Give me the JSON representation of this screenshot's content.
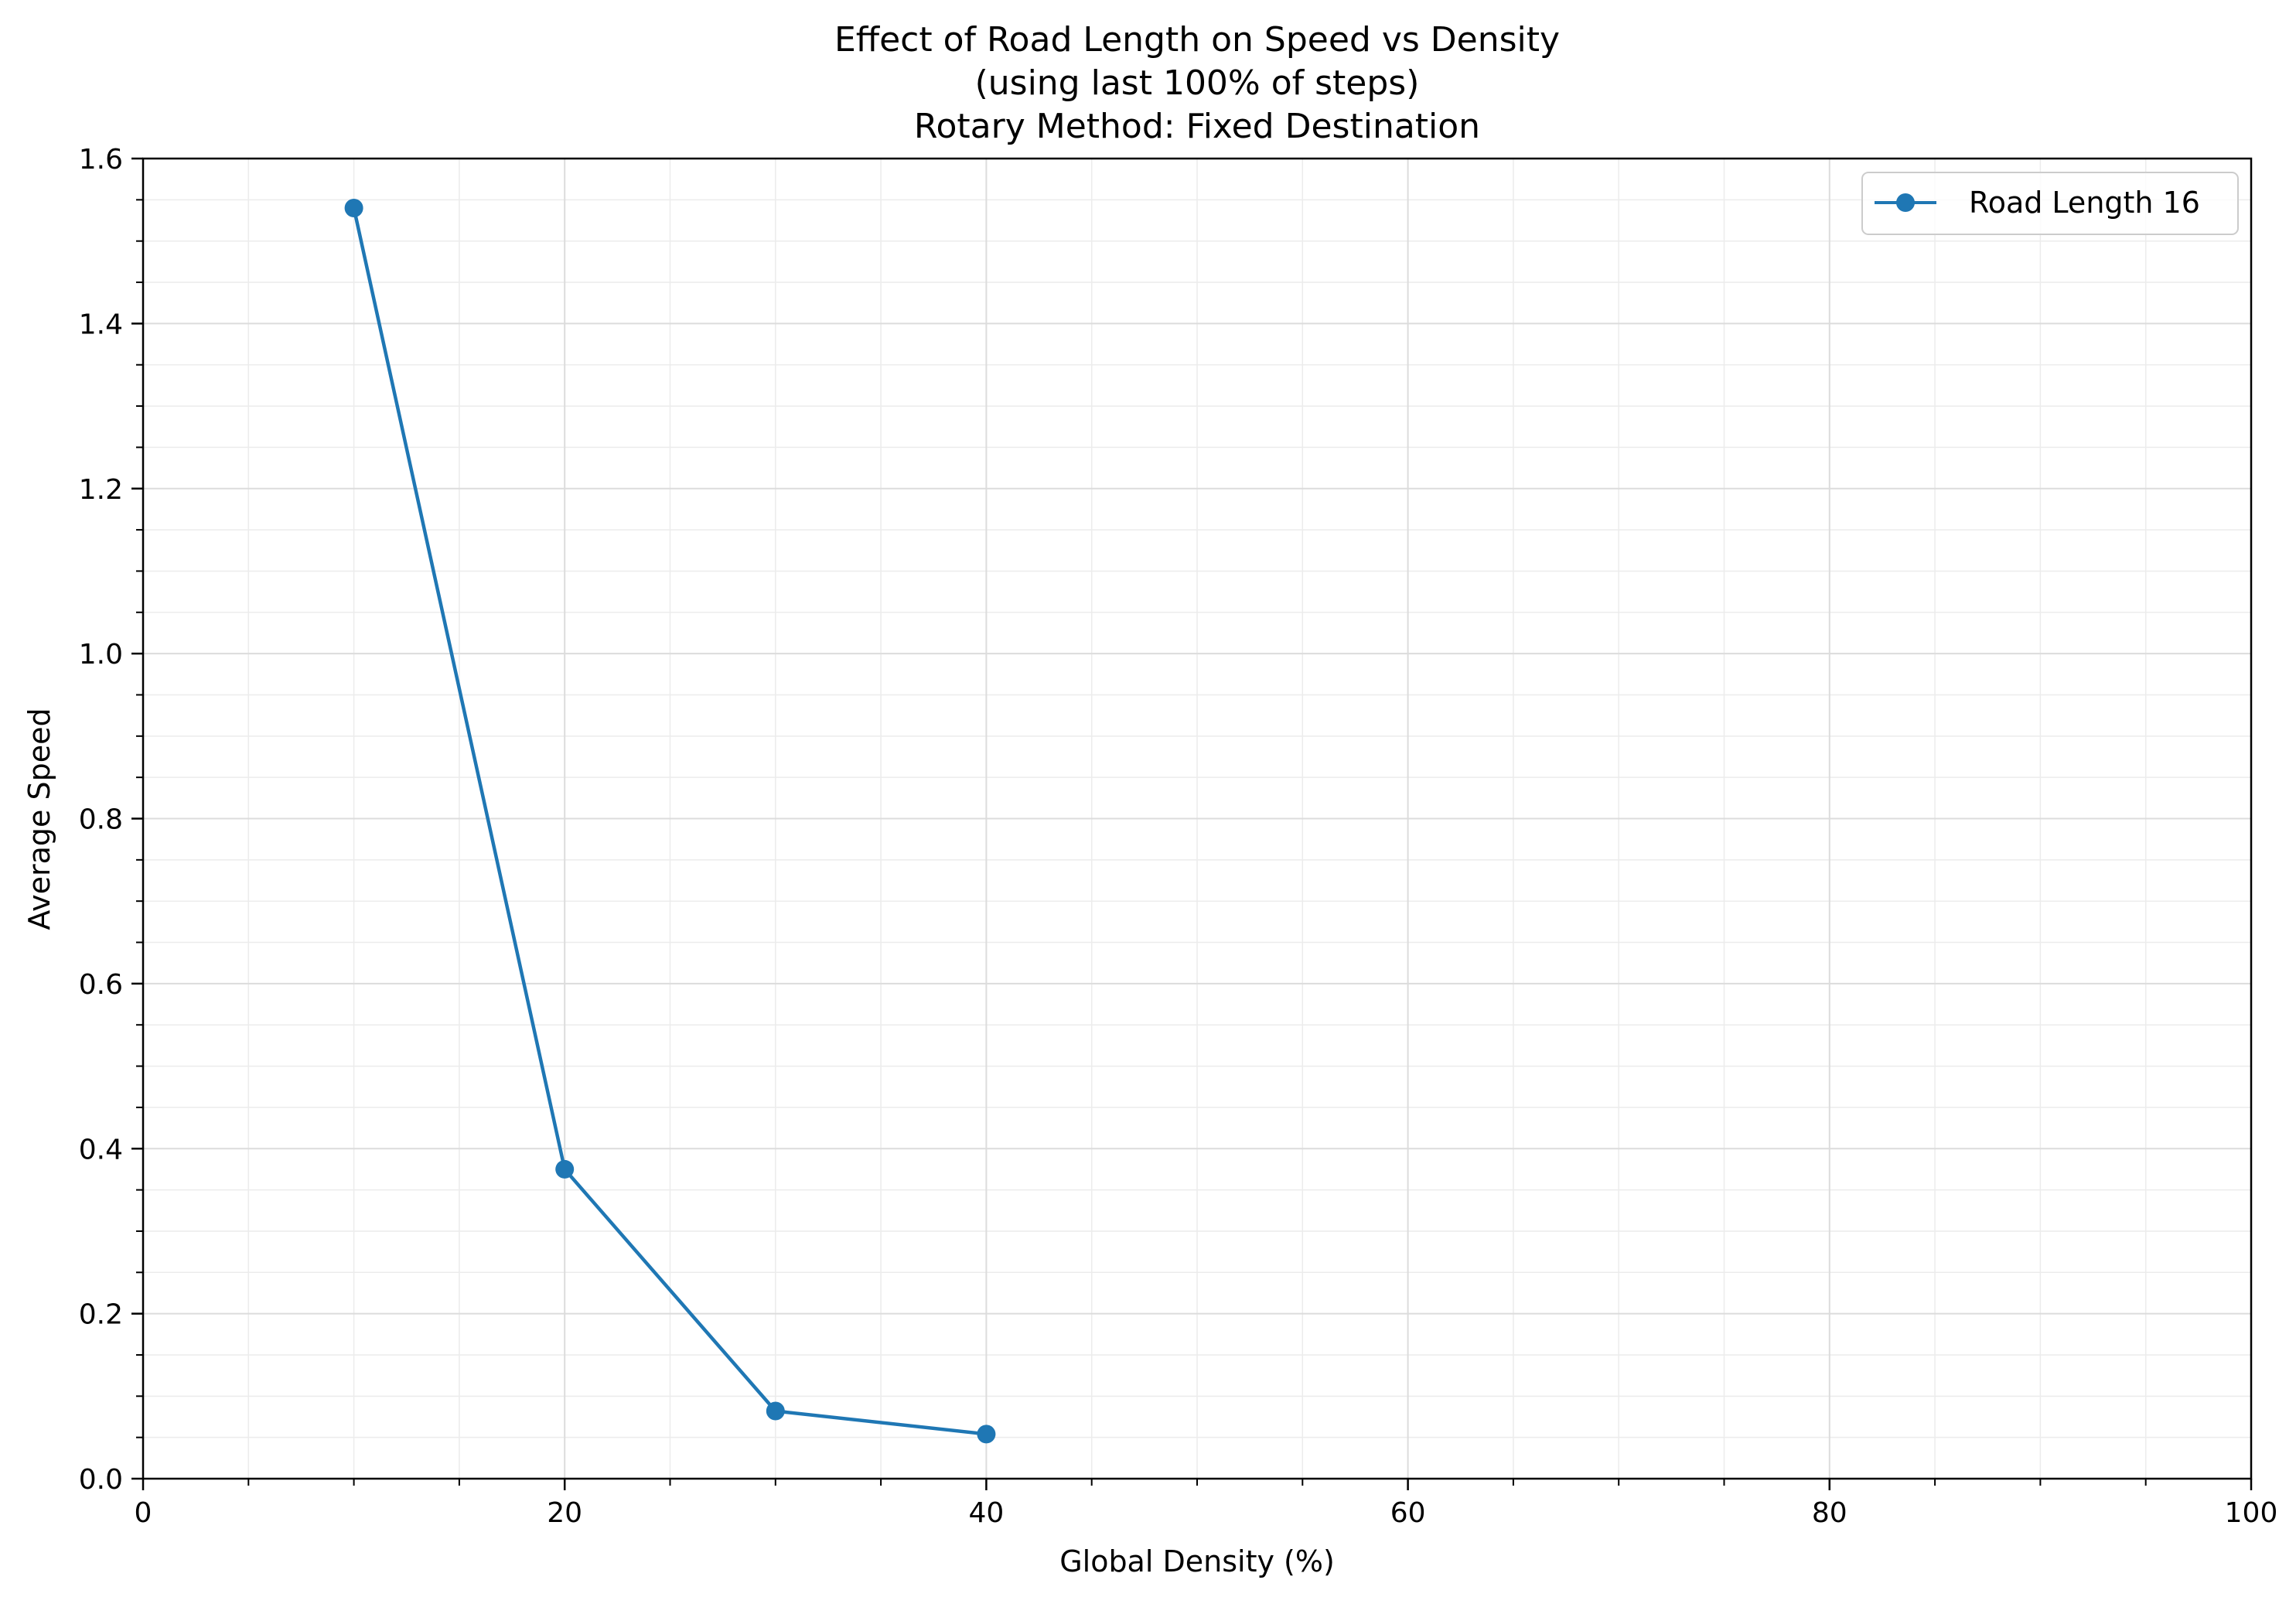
{
  "chart_data": {
    "type": "line",
    "title_lines": [
      "Effect of Road Length on Speed vs Density",
      "(using last 100% of steps)",
      "Rotary Method: Fixed Destination"
    ],
    "xlabel": "Global Density (%)",
    "ylabel": "Average Speed",
    "xlim": [
      0,
      100
    ],
    "ylim": [
      0,
      1.6
    ],
    "xticks": [
      0,
      20,
      40,
      60,
      80,
      100
    ],
    "xtick_labels": [
      "0",
      "20",
      "40",
      "60",
      "80",
      "100"
    ],
    "yticks": [
      0.0,
      0.2,
      0.4,
      0.6,
      0.8,
      1.0,
      1.2,
      1.4,
      1.6
    ],
    "ytick_labels": [
      "0.0",
      "0.2",
      "0.4",
      "0.6",
      "0.8",
      "1.0",
      "1.2",
      "1.4",
      "1.6"
    ],
    "grid": true,
    "minor_grid": true,
    "legend_position": "top-right",
    "series": [
      {
        "name": "Road Length 16",
        "color": "#1f77b4",
        "marker": "circle",
        "x": [
          10,
          20,
          30,
          40
        ],
        "y": [
          1.54,
          0.375,
          0.082,
          0.054
        ]
      }
    ]
  }
}
